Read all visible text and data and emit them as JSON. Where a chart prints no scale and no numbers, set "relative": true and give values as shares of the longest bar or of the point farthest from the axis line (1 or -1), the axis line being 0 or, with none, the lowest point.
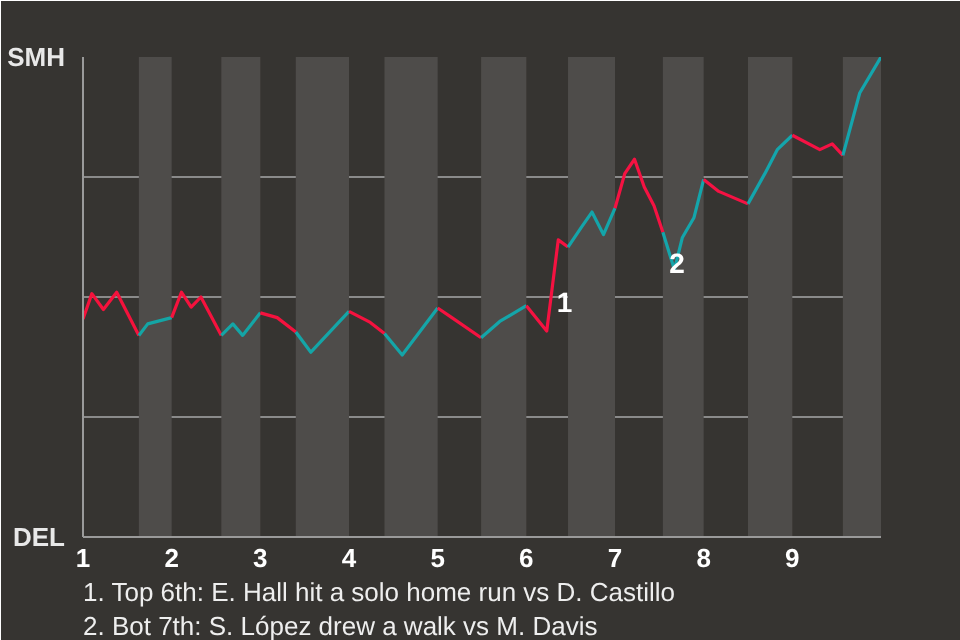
{
  "chart_data": {
    "type": "line",
    "relative": true,
    "series": [
      {
        "color": "#f5123c",
        "x": [
          1,
          1.1,
          1.23,
          1.38,
          1.63
        ],
        "values": [
          0.454,
          0.507,
          0.474,
          0.51,
          0.42
        ]
      },
      {
        "color": "#14a5a5",
        "x": [
          1.63,
          1.73,
          2
        ],
        "values": [
          0.42,
          0.444,
          0.457
        ]
      },
      {
        "color": "#f5123d",
        "x": [
          2,
          2.11,
          2.22,
          2.33,
          2.56
        ],
        "values": [
          0.457,
          0.51,
          0.479,
          0.5,
          0.42
        ]
      },
      {
        "color": "#14a5a6",
        "x": [
          2.56,
          2.69,
          2.8,
          3
        ],
        "values": [
          0.42,
          0.444,
          0.42,
          0.467
        ]
      },
      {
        "color": "#f5123e",
        "x": [
          3,
          3.19,
          3.4
        ],
        "values": [
          0.467,
          0.457,
          0.427
        ]
      },
      {
        "color": "#14a5a7",
        "x": [
          3.4,
          3.57,
          4
        ],
        "values": [
          0.427,
          0.385,
          0.47
        ]
      },
      {
        "color": "#f5123f",
        "x": [
          4,
          4.24,
          4.4
        ],
        "values": [
          0.47,
          0.447,
          0.424
        ]
      },
      {
        "color": "#14a5a8",
        "x": [
          4.4,
          4.6,
          5
        ],
        "values": [
          0.424,
          0.379,
          0.477
        ]
      },
      {
        "color": "#f51240",
        "x": [
          5,
          5.16,
          5.49
        ],
        "values": [
          0.477,
          0.457,
          0.415
        ]
      },
      {
        "color": "#14a5a9",
        "x": [
          5.49,
          5.7,
          6
        ],
        "values": [
          0.415,
          0.449,
          0.482
        ]
      },
      {
        "color": "#f51241",
        "x": [
          6,
          6.23,
          6.36,
          6.47
        ],
        "values": [
          0.482,
          0.429,
          0.619,
          0.604
        ]
      },
      {
        "color": "#14a5aa",
        "x": [
          6.47,
          6.62,
          6.74,
          6.87,
          7
        ],
        "values": [
          0.604,
          0.645,
          0.677,
          0.63,
          0.685
        ]
      },
      {
        "color": "#f51242",
        "x": [
          7,
          7.11,
          7.22,
          7.33,
          7.44,
          7.54
        ],
        "values": [
          0.685,
          0.757,
          0.787,
          0.729,
          0.69,
          0.635
        ]
      },
      {
        "color": "#14a5ab",
        "x": [
          7.54,
          7.67,
          7.76,
          7.89,
          8
        ],
        "values": [
          0.635,
          0.557,
          0.624,
          0.665,
          0.745
        ]
      },
      {
        "color": "#f51243",
        "x": [
          8,
          8.17,
          8.5
        ],
        "values": [
          0.745,
          0.72,
          0.694
        ]
      },
      {
        "color": "#14a5ac",
        "x": [
          8.5,
          8.69,
          8.83,
          9
        ],
        "values": [
          0.694,
          0.757,
          0.807,
          0.837
        ]
      },
      {
        "color": "#f51244",
        "x": [
          9,
          9.31,
          9.45,
          9.57
        ],
        "values": [
          0.837,
          0.807,
          0.819,
          0.795
        ]
      },
      {
        "color": "#14a5ad",
        "x": [
          9.57,
          9.76,
          10
        ],
        "values": [
          0.795,
          0.925,
          1
        ]
      }
    ],
    "xlim": [
      1,
      10
    ],
    "xticks": [
      1,
      2,
      3,
      4,
      5,
      6,
      7,
      8,
      9
    ],
    "grid": "y",
    "bands": [
      {
        "axis": "x",
        "from": 1.63,
        "to": 2,
        "color": "#4e4c4a"
      },
      {
        "axis": "x",
        "from": 2.56,
        "to": 3,
        "color": "#4e4c4a"
      },
      {
        "axis": "x",
        "from": 3.4,
        "to": 4,
        "color": "#4e4c4a"
      },
      {
        "axis": "x",
        "from": 4.4,
        "to": 5,
        "color": "#4e4c4a"
      },
      {
        "axis": "x",
        "from": 5.49,
        "to": 6,
        "color": "#4e4c4a"
      },
      {
        "axis": "x",
        "from": 6.47,
        "to": 7,
        "color": "#4e4c4a"
      },
      {
        "axis": "x",
        "from": 7.54,
        "to": 8,
        "color": "#4e4c4a"
      },
      {
        "axis": "x",
        "from": 8.5,
        "to": 9,
        "color": "#4e4c4a"
      },
      {
        "axis": "x",
        "from": 9.57,
        "to": 10,
        "color": "#4e4c4a"
      }
    ],
    "annotations": [
      "SMH",
      "DEL",
      {
        "text": "1",
        "x": 6.43,
        "y": 0.49
      },
      {
        "text": "2",
        "x": 7.7,
        "y": 0.57
      },
      "1. Top 6th: E. Hall hit a solo home run vs D. Castillo",
      "2. Bot 7th: S. López drew a walk vs M. Davis"
    ]
  }
}
